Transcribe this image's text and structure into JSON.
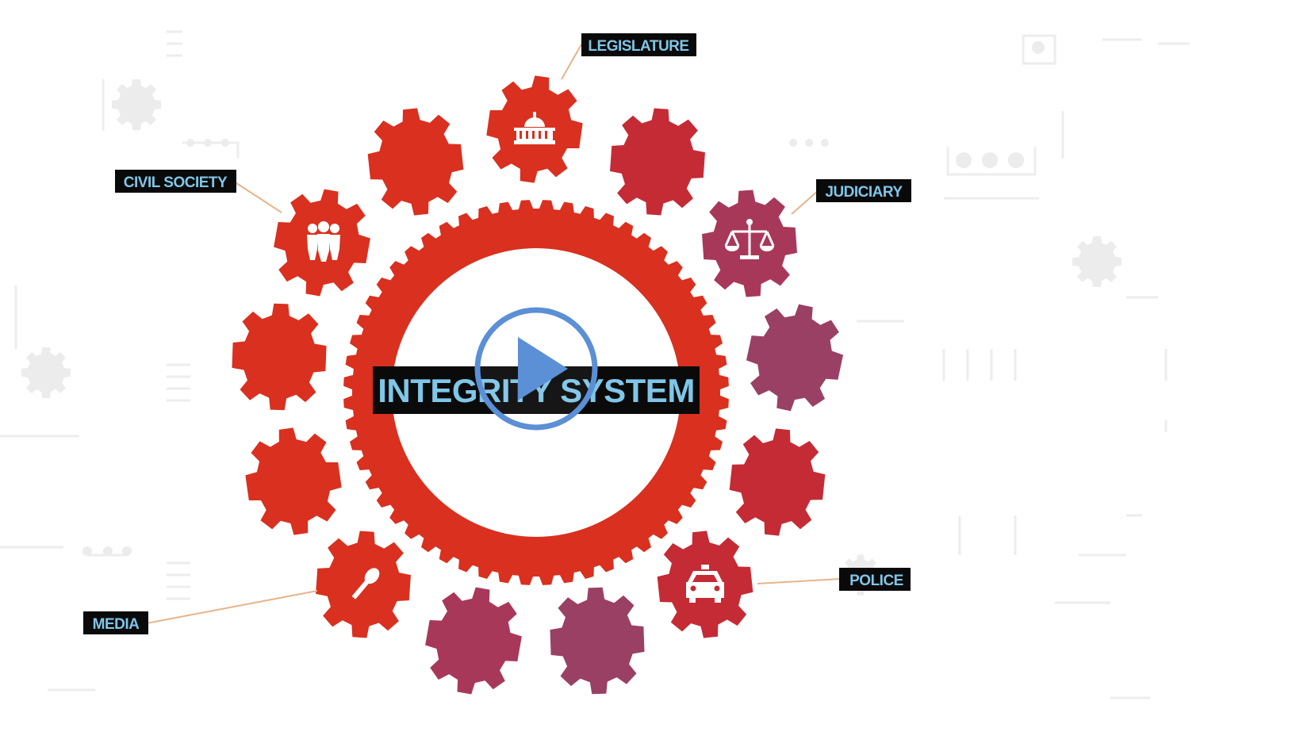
{
  "title": "INTEGRITY SYSTEM",
  "labels": {
    "legislature": "LEGISLATURE",
    "civil_society": "CIVIL SOCIETY",
    "judiciary": "JUDICIARY",
    "media": "MEDIA",
    "police": "POLICE"
  },
  "icons": {
    "legislature": "capitol-building-icon",
    "civil_society": "people-group-icon",
    "judiciary": "scales-of-justice-icon",
    "media": "microphone-icon",
    "police": "police-car-icon",
    "play": "play-icon"
  },
  "colors": {
    "background": "#ffffff",
    "red_gear": "#d9301f",
    "crimson_gear": "#c52b35",
    "magenta_gear": "#a8385a",
    "mauve_gear": "#9a4064",
    "label_bg": "#0a0a0a",
    "label_text": "#7fc6e8",
    "title_text": "#7fc6e8",
    "connector": "#e7b48a",
    "play_button": "#5b8fd6",
    "circuit_lines": "#ececec"
  }
}
